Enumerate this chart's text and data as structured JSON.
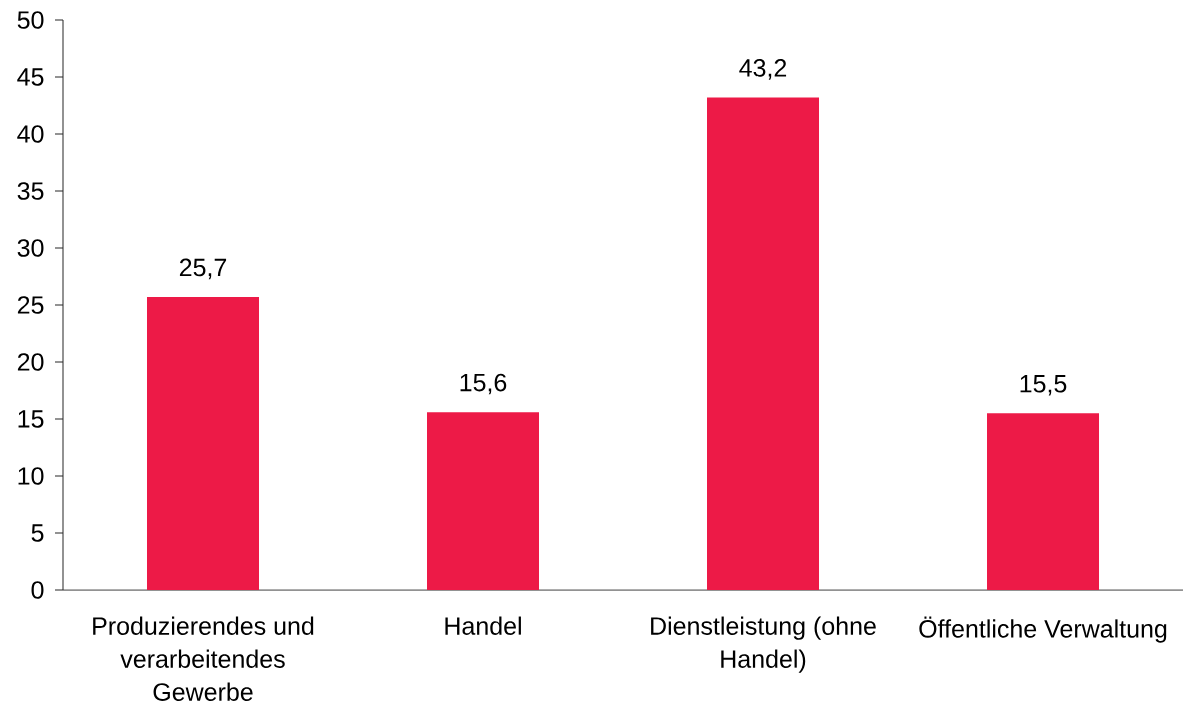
{
  "chart_data": {
    "type": "bar",
    "categories": [
      "Produzierendes und verarbeitendes Gewerbe",
      "Handel",
      "Dienstleistung (ohne Handel)",
      "Öffentliche Verwaltung"
    ],
    "values": [
      25.7,
      15.6,
      43.2,
      15.5
    ],
    "value_labels": [
      "25,7",
      "15,6",
      "43,2",
      "15,5"
    ],
    "color": "#ed1a47",
    "ylim": [
      0,
      50
    ],
    "yticks": [
      0,
      5,
      10,
      15,
      20,
      25,
      30,
      35,
      40,
      45,
      50
    ]
  }
}
